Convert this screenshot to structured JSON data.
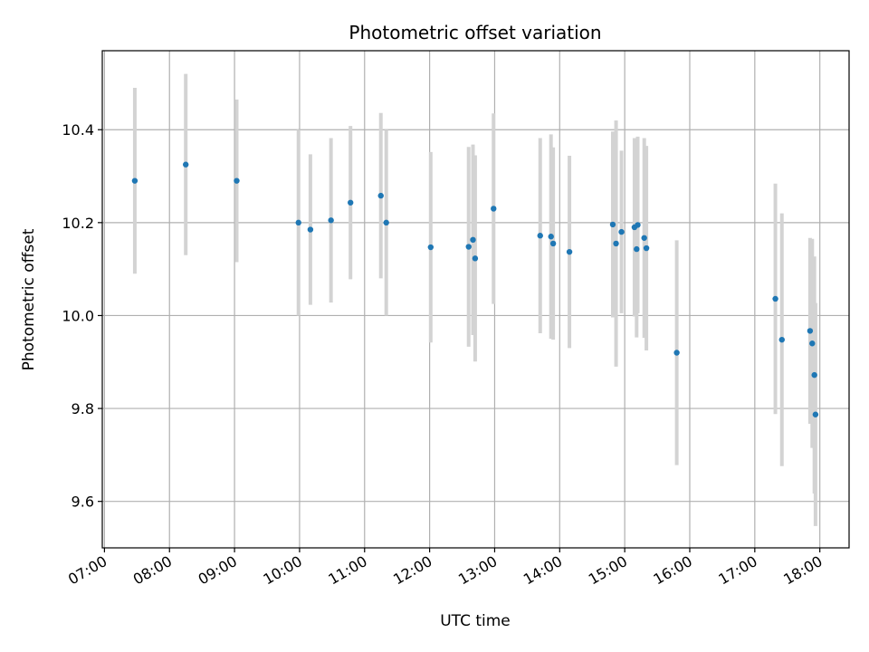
{
  "chart_data": {
    "type": "scatter",
    "title": "Photometric offset variation",
    "xlabel": "UTC time",
    "ylabel": "Photometric offset",
    "x_ticks": [
      "07:00",
      "08:00",
      "09:00",
      "10:00",
      "11:00",
      "12:00",
      "13:00",
      "14:00",
      "15:00",
      "16:00",
      "17:00",
      "18:00"
    ],
    "y_ticks": [
      "9.6",
      "9.8",
      "10.0",
      "10.2",
      "10.4"
    ],
    "xlim": [
      "06:58",
      "18:27"
    ],
    "ylim": [
      9.5,
      10.57
    ],
    "grid": true,
    "colors": {
      "point": "#1f77b4",
      "errorbar": "#d3d3d3",
      "grid": "#b0b0b0"
    },
    "points": [
      {
        "x": "07:28",
        "y": 10.29,
        "err": 0.2
      },
      {
        "x": "08:15",
        "y": 10.325,
        "err": 0.195
      },
      {
        "x": "09:02",
        "y": 10.29,
        "err": 0.175
      },
      {
        "x": "09:59",
        "y": 10.2,
        "err": 0.2
      },
      {
        "x": "10:10",
        "y": 10.185,
        "err": 0.162
      },
      {
        "x": "10:29",
        "y": 10.205,
        "err": 0.177
      },
      {
        "x": "10:47",
        "y": 10.243,
        "err": 0.165
      },
      {
        "x": "11:15",
        "y": 10.258,
        "err": 0.178
      },
      {
        "x": "11:20",
        "y": 10.2,
        "err": 0.2
      },
      {
        "x": "12:01",
        "y": 10.147,
        "err": 0.205
      },
      {
        "x": "12:36",
        "y": 10.148,
        "err": 0.215
      },
      {
        "x": "12:40",
        "y": 10.163,
        "err": 0.205
      },
      {
        "x": "12:42",
        "y": 10.123,
        "err": 0.222
      },
      {
        "x": "12:59",
        "y": 10.23,
        "err": 0.205
      },
      {
        "x": "13:42",
        "y": 10.172,
        "err": 0.21
      },
      {
        "x": "13:52",
        "y": 10.17,
        "err": 0.22
      },
      {
        "x": "13:54",
        "y": 10.155,
        "err": 0.207
      },
      {
        "x": "14:09",
        "y": 10.137,
        "err": 0.207
      },
      {
        "x": "14:49",
        "y": 10.196,
        "err": 0.2
      },
      {
        "x": "14:52",
        "y": 10.155,
        "err": 0.265
      },
      {
        "x": "14:57",
        "y": 10.18,
        "err": 0.175
      },
      {
        "x": "15:09",
        "y": 10.19,
        "err": 0.192
      },
      {
        "x": "15:11",
        "y": 10.143,
        "err": 0.19
      },
      {
        "x": "15:12",
        "y": 10.195,
        "err": 0.19
      },
      {
        "x": "15:18",
        "y": 10.167,
        "err": 0.215
      },
      {
        "x": "15:20",
        "y": 10.145,
        "err": 0.22
      },
      {
        "x": "15:48",
        "y": 9.92,
        "err": 0.242
      },
      {
        "x": "17:19",
        "y": 10.036,
        "err": 0.248
      },
      {
        "x": "17:25",
        "y": 9.948,
        "err": 0.272
      },
      {
        "x": "17:51",
        "y": 9.967,
        "err": 0.2
      },
      {
        "x": "17:53",
        "y": 9.94,
        "err": 0.225
      },
      {
        "x": "17:55",
        "y": 9.872,
        "err": 0.255
      },
      {
        "x": "17:56",
        "y": 9.787,
        "err": 0.24
      }
    ]
  }
}
